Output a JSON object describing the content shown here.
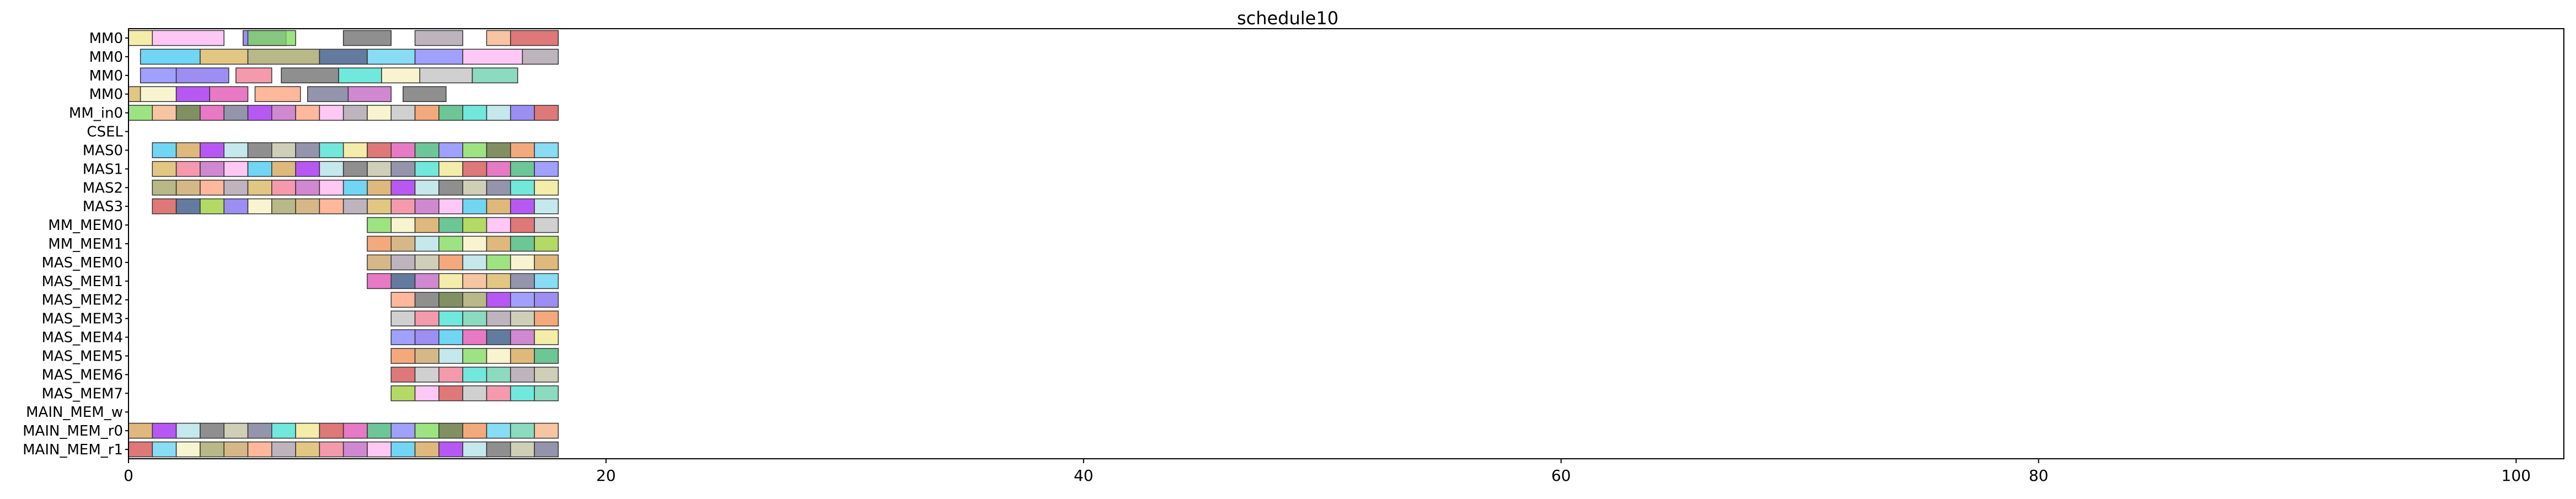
{
  "chart_data": {
    "type": "gantt",
    "title": "schedule10",
    "xlabel": "",
    "ylabel": "",
    "xlim": [
      0,
      102
    ],
    "x_ticks": [
      0,
      20,
      40,
      60,
      80,
      100
    ],
    "x_tick_labels": [
      "0",
      "20",
      "40",
      "60",
      "80",
      "100"
    ],
    "grid": false,
    "rows": [
      "MM0",
      "MM0",
      "MM0",
      "MM0",
      "MM_in0",
      "CSEL",
      "MAS0",
      "MAS1",
      "MAS2",
      "MAS3",
      "MM_MEM0",
      "MM_MEM1",
      "MAS_MEM0",
      "MAS_MEM1",
      "MAS_MEM2",
      "MAS_MEM3",
      "MAS_MEM4",
      "MAS_MEM5",
      "MAS_MEM6",
      "MAS_MEM7",
      "MAIN_MEM_w",
      "MAIN_MEM_r0",
      "MAIN_MEM_r1"
    ],
    "palette": [
      "#f0e68c",
      "#ffb6f0",
      "#7b68ee",
      "#7ed957",
      "#696969",
      "#a89ba8",
      "#f4b183",
      "#d44b4b",
      "#40c8f0",
      "#f5f0c0",
      "#556b2f",
      "#bfbfa0",
      "#d8b45a",
      "#c0c0c0",
      "#e04cb0",
      "#d4a050",
      "#a0a060",
      "#f08c50",
      "#707090",
      "#f07890",
      "#2f4f7f",
      "#3cb371",
      "#a020f0",
      "#c8a060",
      "#60d0f0",
      "#40e0d0",
      "#c060c0",
      "#9acd32",
      "#8080ff",
      "#b0e0e6",
      "#ffa07a",
      "#66cdaa"
    ],
    "tasks": [
      [
        [
          0,
          1,
          0
        ],
        [
          1,
          4,
          1
        ],
        [
          4.8,
          6.6,
          2
        ],
        [
          5,
          7,
          3
        ],
        [
          9,
          11,
          4
        ],
        [
          12,
          14,
          5
        ],
        [
          15,
          16,
          6
        ],
        [
          16,
          18,
          7
        ]
      ],
      [
        [
          0.5,
          3,
          8
        ],
        [
          3,
          5,
          12
        ],
        [
          5,
          8,
          16
        ],
        [
          8,
          10,
          20
        ],
        [
          10,
          12,
          24
        ],
        [
          12,
          14,
          28
        ],
        [
          14,
          16.5,
          1
        ],
        [
          16.5,
          18,
          5
        ]
      ],
      [
        [
          0.5,
          2,
          28
        ],
        [
          2,
          4.2,
          2
        ],
        [
          4.5,
          6,
          19
        ],
        [
          6.4,
          8.8,
          4
        ],
        [
          8.8,
          10.6,
          25
        ],
        [
          10.6,
          12.2,
          9
        ],
        [
          12.2,
          14.4,
          13
        ],
        [
          14.4,
          16.3,
          31
        ]
      ],
      [
        [
          0,
          0.5,
          12
        ],
        [
          0.5,
          2,
          9
        ],
        [
          2,
          3.4,
          22
        ],
        [
          3.4,
          5,
          14
        ],
        [
          5.3,
          7.2,
          30
        ],
        [
          7.5,
          9.2,
          18
        ],
        [
          9.2,
          11,
          26
        ],
        [
          11.5,
          13.3,
          4
        ]
      ],
      [
        [
          0,
          1,
          3
        ],
        [
          1,
          2,
          6
        ],
        [
          2,
          3,
          10
        ],
        [
          3,
          4,
          14
        ],
        [
          4,
          5,
          18
        ],
        [
          5,
          6,
          22
        ],
        [
          6,
          7,
          26
        ],
        [
          7,
          8,
          30
        ],
        [
          8,
          9,
          1
        ],
        [
          9,
          10,
          5
        ],
        [
          10,
          11,
          9
        ],
        [
          11,
          12,
          13
        ],
        [
          12,
          13,
          17
        ],
        [
          13,
          14,
          21
        ],
        [
          14,
          15,
          25
        ],
        [
          15,
          16,
          29
        ],
        [
          16,
          17,
          2
        ],
        [
          17,
          18,
          7
        ]
      ],
      [],
      [
        [
          1,
          2,
          8
        ],
        [
          2,
          3,
          15
        ],
        [
          3,
          4,
          22
        ],
        [
          4,
          5,
          29
        ],
        [
          5,
          6,
          4
        ],
        [
          6,
          7,
          11
        ],
        [
          7,
          8,
          18
        ],
        [
          8,
          9,
          25
        ],
        [
          9,
          10,
          0
        ],
        [
          10,
          11,
          7
        ],
        [
          11,
          12,
          14
        ],
        [
          12,
          13,
          21
        ],
        [
          13,
          14,
          28
        ],
        [
          14,
          15,
          3
        ],
        [
          15,
          16,
          10
        ],
        [
          16,
          17,
          17
        ],
        [
          17,
          18,
          24
        ]
      ],
      [
        [
          1,
          2,
          12
        ],
        [
          2,
          3,
          19
        ],
        [
          3,
          4,
          26
        ],
        [
          4,
          5,
          1
        ],
        [
          5,
          6,
          8
        ],
        [
          6,
          7,
          15
        ],
        [
          7,
          8,
          22
        ],
        [
          8,
          9,
          29
        ],
        [
          9,
          10,
          4
        ],
        [
          10,
          11,
          11
        ],
        [
          11,
          12,
          18
        ],
        [
          12,
          13,
          25
        ],
        [
          13,
          14,
          0
        ],
        [
          14,
          15,
          7
        ],
        [
          15,
          16,
          14
        ],
        [
          16,
          17,
          21
        ],
        [
          17,
          18,
          28
        ]
      ],
      [
        [
          1,
          2,
          16
        ],
        [
          2,
          3,
          23
        ],
        [
          3,
          4,
          30
        ],
        [
          4,
          5,
          5
        ],
        [
          5,
          6,
          12
        ],
        [
          6,
          7,
          19
        ],
        [
          7,
          8,
          26
        ],
        [
          8,
          9,
          1
        ],
        [
          9,
          10,
          8
        ],
        [
          10,
          11,
          15
        ],
        [
          11,
          12,
          22
        ],
        [
          12,
          13,
          29
        ],
        [
          13,
          14,
          4
        ],
        [
          14,
          15,
          11
        ],
        [
          15,
          16,
          18
        ],
        [
          16,
          17,
          25
        ],
        [
          17,
          18,
          0
        ]
      ],
      [
        [
          1,
          2,
          7
        ],
        [
          2,
          3,
          20
        ],
        [
          3,
          4,
          27
        ],
        [
          4,
          5,
          2
        ],
        [
          5,
          6,
          9
        ],
        [
          6,
          7,
          16
        ],
        [
          7,
          8,
          23
        ],
        [
          8,
          9,
          30
        ],
        [
          9,
          10,
          5
        ],
        [
          10,
          11,
          12
        ],
        [
          11,
          12,
          19
        ],
        [
          12,
          13,
          26
        ],
        [
          13,
          14,
          1
        ],
        [
          14,
          15,
          8
        ],
        [
          15,
          16,
          15
        ],
        [
          16,
          17,
          22
        ],
        [
          17,
          18,
          29
        ]
      ],
      [
        [
          10,
          11,
          3
        ],
        [
          11,
          12,
          9
        ],
        [
          12,
          13,
          15
        ],
        [
          13,
          14,
          21
        ],
        [
          14,
          15,
          27
        ],
        [
          15,
          16,
          1
        ],
        [
          16,
          17,
          7
        ],
        [
          17,
          18,
          13
        ]
      ],
      [
        [
          10,
          11,
          17
        ],
        [
          11,
          12,
          23
        ],
        [
          12,
          13,
          29
        ],
        [
          13,
          14,
          3
        ],
        [
          14,
          15,
          9
        ],
        [
          15,
          16,
          15
        ],
        [
          16,
          17,
          21
        ],
        [
          17,
          18,
          27
        ]
      ],
      [
        [
          10,
          11,
          23
        ],
        [
          11,
          12,
          5
        ],
        [
          12,
          13,
          11
        ],
        [
          13,
          14,
          17
        ],
        [
          14,
          15,
          29
        ],
        [
          15,
          16,
          3
        ],
        [
          16,
          17,
          9
        ],
        [
          17,
          18,
          15
        ]
      ],
      [
        [
          10,
          11,
          14
        ],
        [
          11,
          12,
          20
        ],
        [
          12,
          13,
          26
        ],
        [
          13,
          14,
          0
        ],
        [
          14,
          15,
          6
        ],
        [
          15,
          16,
          12
        ],
        [
          16,
          17,
          18
        ],
        [
          17,
          18,
          24
        ]
      ],
      [
        [
          11,
          12,
          30
        ],
        [
          12,
          13,
          4
        ],
        [
          13,
          14,
          10
        ],
        [
          14,
          15,
          16
        ],
        [
          15,
          16,
          22
        ],
        [
          16,
          17,
          28
        ],
        [
          17,
          18,
          2
        ]
      ],
      [
        [
          11,
          12,
          13
        ],
        [
          12,
          13,
          19
        ],
        [
          13,
          14,
          25
        ],
        [
          14,
          15,
          31
        ],
        [
          15,
          16,
          5
        ],
        [
          16,
          17,
          11
        ],
        [
          17,
          18,
          17
        ]
      ],
      [
        [
          11,
          12,
          28
        ],
        [
          12,
          13,
          2
        ],
        [
          13,
          14,
          8
        ],
        [
          14,
          15,
          14
        ],
        [
          15,
          16,
          20
        ],
        [
          16,
          17,
          26
        ],
        [
          17,
          18,
          0
        ]
      ],
      [
        [
          11,
          12,
          17
        ],
        [
          12,
          13,
          23
        ],
        [
          13,
          14,
          29
        ],
        [
          14,
          15,
          3
        ],
        [
          15,
          16,
          9
        ],
        [
          16,
          17,
          15
        ],
        [
          17,
          18,
          21
        ]
      ],
      [
        [
          11,
          12,
          7
        ],
        [
          12,
          13,
          13
        ],
        [
          13,
          14,
          19
        ],
        [
          14,
          15,
          25
        ],
        [
          15,
          16,
          31
        ],
        [
          16,
          17,
          5
        ],
        [
          17,
          18,
          11
        ]
      ],
      [
        [
          11,
          12,
          27
        ],
        [
          12,
          13,
          1
        ],
        [
          13,
          14,
          7
        ],
        [
          14,
          15,
          13
        ],
        [
          15,
          16,
          19
        ],
        [
          16,
          17,
          25
        ],
        [
          17,
          18,
          31
        ]
      ],
      [],
      [
        [
          0,
          1,
          15
        ],
        [
          1,
          2,
          22
        ],
        [
          2,
          3,
          29
        ],
        [
          3,
          4,
          4
        ],
        [
          4,
          5,
          11
        ],
        [
          5,
          6,
          18
        ],
        [
          6,
          7,
          25
        ],
        [
          7,
          8,
          0
        ],
        [
          8,
          9,
          7
        ],
        [
          9,
          10,
          14
        ],
        [
          10,
          11,
          21
        ],
        [
          11,
          12,
          28
        ],
        [
          12,
          13,
          3
        ],
        [
          13,
          14,
          10
        ],
        [
          14,
          15,
          17
        ],
        [
          15,
          16,
          24
        ],
        [
          16,
          17,
          31
        ],
        [
          17,
          18,
          6
        ]
      ],
      [
        [
          0,
          1,
          7
        ],
        [
          1,
          2,
          24
        ],
        [
          2,
          3,
          9
        ],
        [
          3,
          4,
          16
        ],
        [
          4,
          5,
          23
        ],
        [
          5,
          6,
          30
        ],
        [
          6,
          7,
          5
        ],
        [
          7,
          8,
          12
        ],
        [
          8,
          9,
          19
        ],
        [
          9,
          10,
          26
        ],
        [
          10,
          11,
          1
        ],
        [
          11,
          12,
          8
        ],
        [
          12,
          13,
          15
        ],
        [
          13,
          14,
          22
        ],
        [
          14,
          15,
          29
        ],
        [
          15,
          16,
          4
        ],
        [
          16,
          17,
          11
        ],
        [
          17,
          18,
          18
        ]
      ]
    ]
  }
}
